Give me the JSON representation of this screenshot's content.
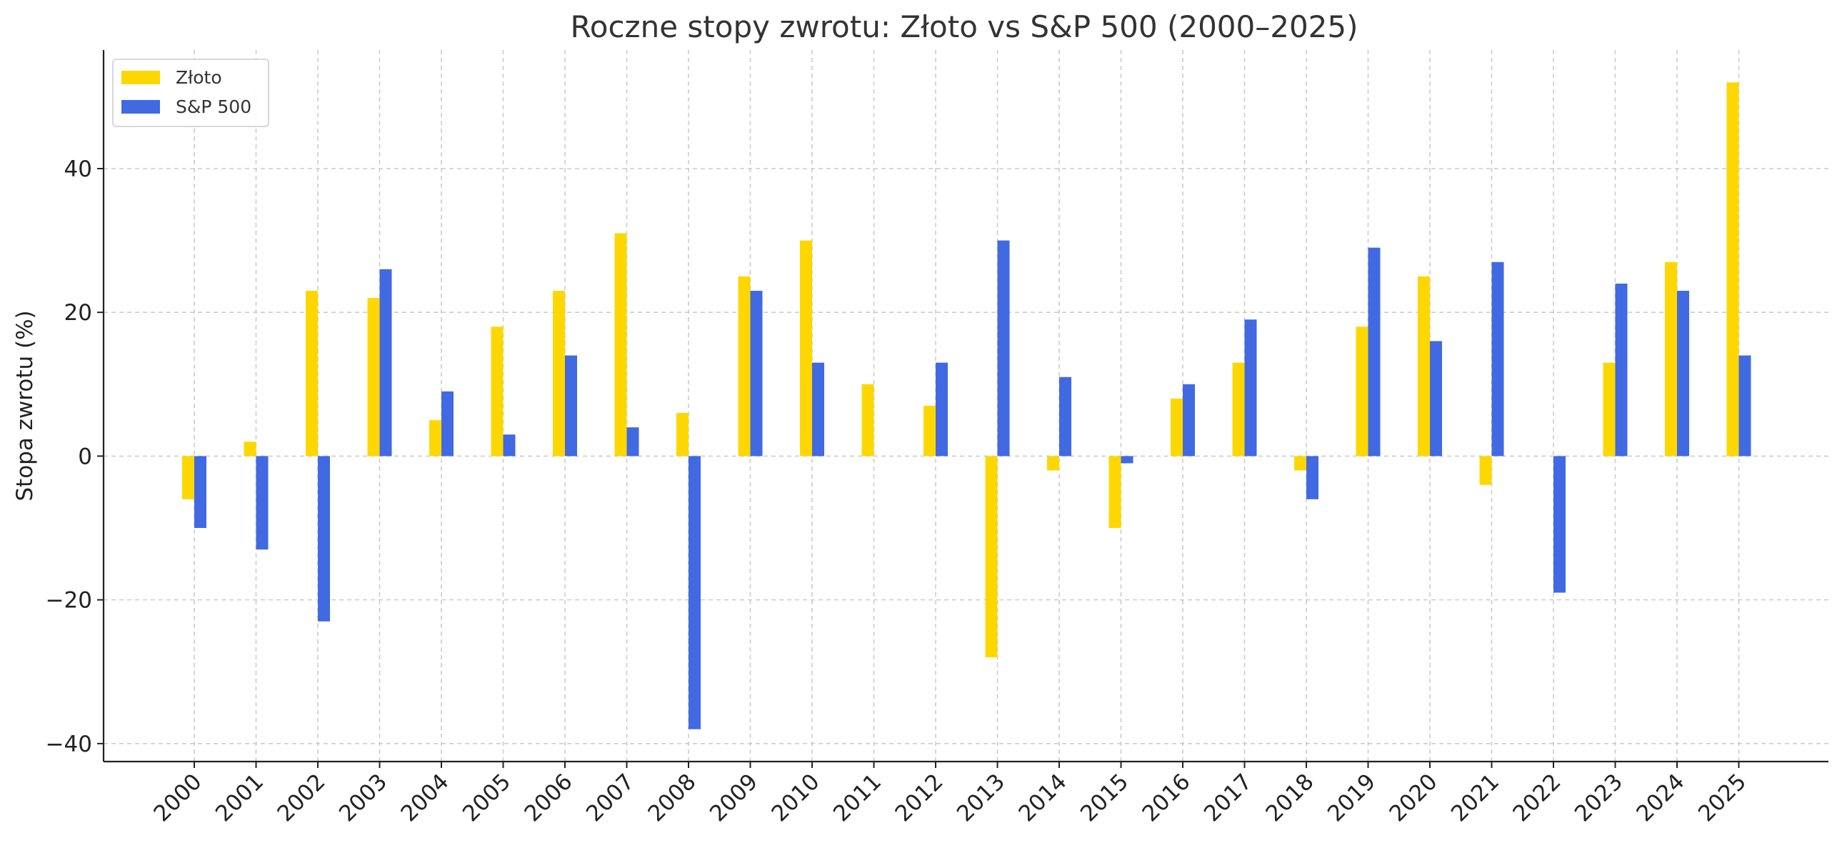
{
  "chart_data": {
    "type": "bar",
    "title": "Roczne stopy zwrotu: Złoto vs S&P 500 (2000–2025)",
    "xlabel": "",
    "ylabel": "Stopa zwrotu (%)",
    "ylim": [
      -42.5,
      56.5
    ],
    "yticks": [
      -40,
      -20,
      0,
      20,
      40
    ],
    "ytick_labels": [
      "−40",
      "−20",
      "0",
      "20",
      "40"
    ],
    "grid": true,
    "legend_position": "top-left",
    "categories": [
      "2000",
      "2001",
      "2002",
      "2003",
      "2004",
      "2005",
      "2006",
      "2007",
      "2008",
      "2009",
      "2010",
      "2011",
      "2012",
      "2013",
      "2014",
      "2015",
      "2016",
      "2017",
      "2018",
      "2019",
      "2020",
      "2021",
      "2022",
      "2023",
      "2024",
      "2025"
    ],
    "series": [
      {
        "name": "Złoto",
        "color": "#FFD700",
        "values": [
          -6,
          2,
          23,
          22,
          5,
          18,
          23,
          31,
          6,
          25,
          30,
          10,
          7,
          -28,
          -2,
          -10,
          8,
          13,
          -2,
          18,
          25,
          -4,
          0,
          13,
          27,
          52
        ]
      },
      {
        "name": "S&P 500",
        "color": "#4169E1",
        "values": [
          -10,
          -13,
          -23,
          26,
          9,
          3,
          14,
          4,
          -38,
          23,
          13,
          0,
          13,
          30,
          11,
          -1,
          10,
          19,
          -6,
          29,
          16,
          27,
          -19,
          24,
          23,
          14
        ]
      }
    ]
  }
}
